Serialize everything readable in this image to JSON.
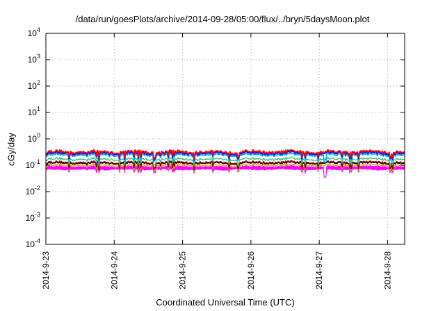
{
  "chart_data": {
    "type": "line",
    "title": "/data/run/goesPlots/archive/2014-09-28/05:00/flux/../bryn/5daysMoon.plot",
    "xlabel": "Coordinated Universal Time (UTC)",
    "ylabel": "cGy/day",
    "y_scale": "log",
    "ylim": [
      0.0001,
      10000
    ],
    "y_ticks": [
      {
        "base": "10",
        "exp": "4",
        "value": 10000
      },
      {
        "base": "10",
        "exp": "3",
        "value": 1000
      },
      {
        "base": "10",
        "exp": "2",
        "value": 100
      },
      {
        "base": "10",
        "exp": "1",
        "value": 10
      },
      {
        "base": "10",
        "exp": "0",
        "value": 1
      },
      {
        "base": "10",
        "exp": "-1",
        "value": 0.1
      },
      {
        "base": "10",
        "exp": "-2",
        "value": 0.01
      },
      {
        "base": "10",
        "exp": "-3",
        "value": 0.001
      },
      {
        "base": "10",
        "exp": "-4",
        "value": 0.0001
      }
    ],
    "xlim": [
      "2014-09-23",
      "2014-09-28T06:00"
    ],
    "x_ticks": [
      "2014-9-23",
      "2014-9-24",
      "2014-9-25",
      "2014-9-26",
      "2014-9-27",
      "2014-9-28"
    ],
    "grid": true,
    "series": [
      {
        "color": "#ff00ff",
        "style": "filled band",
        "base_value": 0.088,
        "low_value": 0.07,
        "dip_value": 0.035
      },
      {
        "color": "#e8a000",
        "base_value": 0.1
      },
      {
        "color": "#000000",
        "base_value": 0.12
      },
      {
        "color": "#a00000",
        "base_value": 0.13
      },
      {
        "color": "#2ec27e",
        "base_value": 0.17
      },
      {
        "color": "#00aaff",
        "base_value": 0.25,
        "dip_value": 0.13
      },
      {
        "color": "#0000ff",
        "base_value": 0.29
      },
      {
        "color": "#ff0000",
        "base_value": 0.32
      }
    ]
  }
}
